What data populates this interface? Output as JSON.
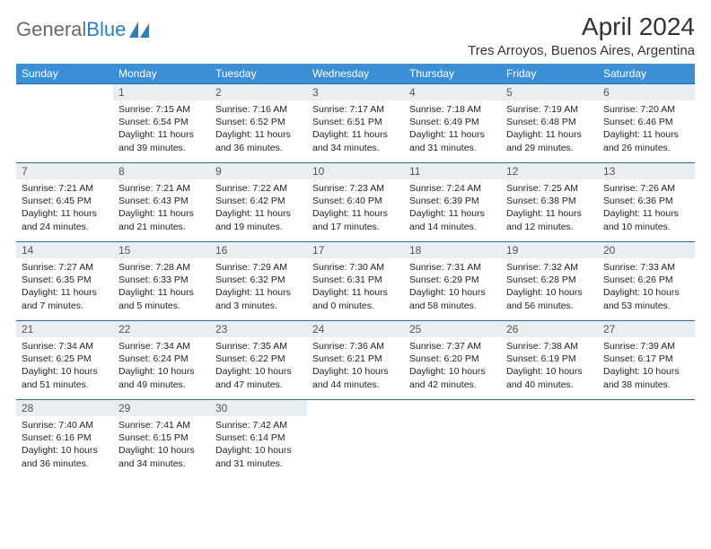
{
  "logo": {
    "text_a": "General",
    "text_b": "Blue"
  },
  "title": "April 2024",
  "location": "Tres Arroyos, Buenos Aires, Argentina",
  "colors": {
    "header_bg": "#3b8fd4",
    "daynum_bg": "#e9eef2",
    "row_border": "#2a6fa8",
    "logo_gray": "#6a6a6a",
    "logo_blue": "#2a7fbf"
  },
  "weekdays": [
    "Sunday",
    "Monday",
    "Tuesday",
    "Wednesday",
    "Thursday",
    "Friday",
    "Saturday"
  ],
  "weeks": [
    [
      {
        "n": "",
        "sr": "",
        "ss": "",
        "dl": ""
      },
      {
        "n": "1",
        "sr": "Sunrise: 7:15 AM",
        "ss": "Sunset: 6:54 PM",
        "dl": "Daylight: 11 hours and 39 minutes."
      },
      {
        "n": "2",
        "sr": "Sunrise: 7:16 AM",
        "ss": "Sunset: 6:52 PM",
        "dl": "Daylight: 11 hours and 36 minutes."
      },
      {
        "n": "3",
        "sr": "Sunrise: 7:17 AM",
        "ss": "Sunset: 6:51 PM",
        "dl": "Daylight: 11 hours and 34 minutes."
      },
      {
        "n": "4",
        "sr": "Sunrise: 7:18 AM",
        "ss": "Sunset: 6:49 PM",
        "dl": "Daylight: 11 hours and 31 minutes."
      },
      {
        "n": "5",
        "sr": "Sunrise: 7:19 AM",
        "ss": "Sunset: 6:48 PM",
        "dl": "Daylight: 11 hours and 29 minutes."
      },
      {
        "n": "6",
        "sr": "Sunrise: 7:20 AM",
        "ss": "Sunset: 6:46 PM",
        "dl": "Daylight: 11 hours and 26 minutes."
      }
    ],
    [
      {
        "n": "7",
        "sr": "Sunrise: 7:21 AM",
        "ss": "Sunset: 6:45 PM",
        "dl": "Daylight: 11 hours and 24 minutes."
      },
      {
        "n": "8",
        "sr": "Sunrise: 7:21 AM",
        "ss": "Sunset: 6:43 PM",
        "dl": "Daylight: 11 hours and 21 minutes."
      },
      {
        "n": "9",
        "sr": "Sunrise: 7:22 AM",
        "ss": "Sunset: 6:42 PM",
        "dl": "Daylight: 11 hours and 19 minutes."
      },
      {
        "n": "10",
        "sr": "Sunrise: 7:23 AM",
        "ss": "Sunset: 6:40 PM",
        "dl": "Daylight: 11 hours and 17 minutes."
      },
      {
        "n": "11",
        "sr": "Sunrise: 7:24 AM",
        "ss": "Sunset: 6:39 PM",
        "dl": "Daylight: 11 hours and 14 minutes."
      },
      {
        "n": "12",
        "sr": "Sunrise: 7:25 AM",
        "ss": "Sunset: 6:38 PM",
        "dl": "Daylight: 11 hours and 12 minutes."
      },
      {
        "n": "13",
        "sr": "Sunrise: 7:26 AM",
        "ss": "Sunset: 6:36 PM",
        "dl": "Daylight: 11 hours and 10 minutes."
      }
    ],
    [
      {
        "n": "14",
        "sr": "Sunrise: 7:27 AM",
        "ss": "Sunset: 6:35 PM",
        "dl": "Daylight: 11 hours and 7 minutes."
      },
      {
        "n": "15",
        "sr": "Sunrise: 7:28 AM",
        "ss": "Sunset: 6:33 PM",
        "dl": "Daylight: 11 hours and 5 minutes."
      },
      {
        "n": "16",
        "sr": "Sunrise: 7:29 AM",
        "ss": "Sunset: 6:32 PM",
        "dl": "Daylight: 11 hours and 3 minutes."
      },
      {
        "n": "17",
        "sr": "Sunrise: 7:30 AM",
        "ss": "Sunset: 6:31 PM",
        "dl": "Daylight: 11 hours and 0 minutes."
      },
      {
        "n": "18",
        "sr": "Sunrise: 7:31 AM",
        "ss": "Sunset: 6:29 PM",
        "dl": "Daylight: 10 hours and 58 minutes."
      },
      {
        "n": "19",
        "sr": "Sunrise: 7:32 AM",
        "ss": "Sunset: 6:28 PM",
        "dl": "Daylight: 10 hours and 56 minutes."
      },
      {
        "n": "20",
        "sr": "Sunrise: 7:33 AM",
        "ss": "Sunset: 6:26 PM",
        "dl": "Daylight: 10 hours and 53 minutes."
      }
    ],
    [
      {
        "n": "21",
        "sr": "Sunrise: 7:34 AM",
        "ss": "Sunset: 6:25 PM",
        "dl": "Daylight: 10 hours and 51 minutes."
      },
      {
        "n": "22",
        "sr": "Sunrise: 7:34 AM",
        "ss": "Sunset: 6:24 PM",
        "dl": "Daylight: 10 hours and 49 minutes."
      },
      {
        "n": "23",
        "sr": "Sunrise: 7:35 AM",
        "ss": "Sunset: 6:22 PM",
        "dl": "Daylight: 10 hours and 47 minutes."
      },
      {
        "n": "24",
        "sr": "Sunrise: 7:36 AM",
        "ss": "Sunset: 6:21 PM",
        "dl": "Daylight: 10 hours and 44 minutes."
      },
      {
        "n": "25",
        "sr": "Sunrise: 7:37 AM",
        "ss": "Sunset: 6:20 PM",
        "dl": "Daylight: 10 hours and 42 minutes."
      },
      {
        "n": "26",
        "sr": "Sunrise: 7:38 AM",
        "ss": "Sunset: 6:19 PM",
        "dl": "Daylight: 10 hours and 40 minutes."
      },
      {
        "n": "27",
        "sr": "Sunrise: 7:39 AM",
        "ss": "Sunset: 6:17 PM",
        "dl": "Daylight: 10 hours and 38 minutes."
      }
    ],
    [
      {
        "n": "28",
        "sr": "Sunrise: 7:40 AM",
        "ss": "Sunset: 6:16 PM",
        "dl": "Daylight: 10 hours and 36 minutes."
      },
      {
        "n": "29",
        "sr": "Sunrise: 7:41 AM",
        "ss": "Sunset: 6:15 PM",
        "dl": "Daylight: 10 hours and 34 minutes."
      },
      {
        "n": "30",
        "sr": "Sunrise: 7:42 AM",
        "ss": "Sunset: 6:14 PM",
        "dl": "Daylight: 10 hours and 31 minutes."
      },
      {
        "n": "",
        "sr": "",
        "ss": "",
        "dl": ""
      },
      {
        "n": "",
        "sr": "",
        "ss": "",
        "dl": ""
      },
      {
        "n": "",
        "sr": "",
        "ss": "",
        "dl": ""
      },
      {
        "n": "",
        "sr": "",
        "ss": "",
        "dl": ""
      }
    ]
  ]
}
